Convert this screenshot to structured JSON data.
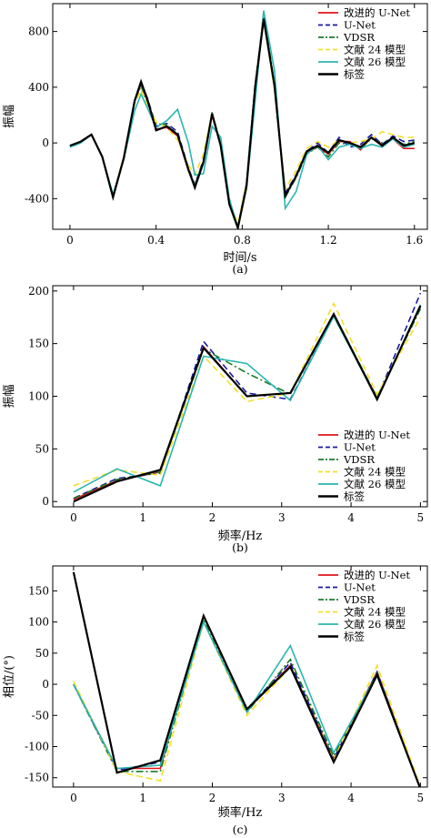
{
  "legend_labels": [
    "改进的 U-Net",
    "U-Net",
    "VDSR",
    "文献 24 模型",
    "文献 26 模型",
    "标签"
  ],
  "series_styles": [
    {
      "color": "#e0141c",
      "dash": "solid"
    },
    {
      "color": "#1a1aa0",
      "dash": "dashed"
    },
    {
      "color": "#1c7c2c",
      "dash": "dashdot"
    },
    {
      "color": "#f2e02a",
      "dash": "dashed"
    },
    {
      "color": "#2bb6b0",
      "dash": "solid"
    },
    {
      "color": "#000000",
      "dash": "solid"
    }
  ],
  "chart_data": [
    {
      "type": "line",
      "caption": "(a)",
      "xlabel": "时间/s",
      "ylabel": "振幅",
      "xlim": [
        -0.08,
        1.66
      ],
      "ylim": [
        -620,
        1000
      ],
      "xticks": [
        0,
        0.4,
        0.8,
        1.2,
        1.6
      ],
      "xtick_labels": [
        "0",
        "0.4",
        "0.8",
        "1.2",
        "1.6"
      ],
      "yticks": [
        -400,
        0,
        400,
        800
      ],
      "ytick_labels": [
        "-400",
        "0",
        "400",
        "800"
      ],
      "legend_position": "top-right",
      "series": [
        {
          "name": "改进的 U-Net",
          "x": [
            0,
            0.05,
            0.1,
            0.15,
            0.2,
            0.25,
            0.3,
            0.33,
            0.36,
            0.4,
            0.45,
            0.5,
            0.55,
            0.58,
            0.62,
            0.66,
            0.7,
            0.74,
            0.78,
            0.82,
            0.86,
            0.9,
            0.95,
            1.0,
            1.05,
            1.1,
            1.15,
            1.2,
            1.25,
            1.3,
            1.35,
            1.4,
            1.45,
            1.5,
            1.55,
            1.6
          ],
          "y": [
            -20,
            10,
            60,
            -100,
            -380,
            -100,
            300,
            420,
            300,
            100,
            110,
            50,
            -200,
            -310,
            -140,
            200,
            -20,
            -430,
            -610,
            -300,
            400,
            890,
            400,
            -380,
            -240,
            -70,
            -30,
            -80,
            10,
            10,
            -50,
            40,
            -10,
            30,
            -40,
            -40
          ]
        },
        {
          "name": "U-Net",
          "x": [
            0,
            0.05,
            0.1,
            0.15,
            0.2,
            0.25,
            0.3,
            0.33,
            0.36,
            0.4,
            0.45,
            0.5,
            0.55,
            0.58,
            0.62,
            0.66,
            0.7,
            0.74,
            0.78,
            0.82,
            0.86,
            0.9,
            0.95,
            1.0,
            1.05,
            1.1,
            1.15,
            1.2,
            1.25,
            1.3,
            1.35,
            1.4,
            1.45,
            1.5,
            1.55,
            1.6
          ],
          "y": [
            -20,
            10,
            60,
            -100,
            -390,
            -110,
            300,
            430,
            320,
            120,
            140,
            80,
            -180,
            -300,
            -120,
            210,
            -10,
            -420,
            -600,
            -290,
            420,
            900,
            400,
            -360,
            -230,
            -60,
            0,
            -70,
            40,
            -30,
            -10,
            60,
            -10,
            50,
            10,
            20
          ]
        },
        {
          "name": "VDSR",
          "x": [
            0,
            0.05,
            0.1,
            0.15,
            0.2,
            0.25,
            0.3,
            0.33,
            0.36,
            0.4,
            0.45,
            0.5,
            0.55,
            0.58,
            0.62,
            0.66,
            0.7,
            0.74,
            0.78,
            0.82,
            0.86,
            0.9,
            0.95,
            1.0,
            1.05,
            1.1,
            1.15,
            1.2,
            1.25,
            1.3,
            1.35,
            1.4,
            1.45,
            1.5,
            1.55,
            1.6
          ],
          "y": [
            -20,
            10,
            60,
            -100,
            -380,
            -110,
            300,
            410,
            280,
            140,
            130,
            60,
            -190,
            -300,
            -130,
            220,
            -10,
            -430,
            -600,
            -300,
            400,
            940,
            420,
            -390,
            -250,
            -80,
            -30,
            -100,
            0,
            -10,
            -40,
            30,
            0,
            30,
            -10,
            10
          ]
        },
        {
          "name": "文献 24 模型",
          "x": [
            0,
            0.05,
            0.1,
            0.15,
            0.2,
            0.25,
            0.3,
            0.33,
            0.36,
            0.4,
            0.45,
            0.5,
            0.55,
            0.58,
            0.62,
            0.66,
            0.7,
            0.74,
            0.78,
            0.82,
            0.86,
            0.9,
            0.95,
            1.0,
            1.05,
            1.1,
            1.15,
            1.2,
            1.25,
            1.3,
            1.35,
            1.4,
            1.45,
            1.5,
            1.55,
            1.6
          ],
          "y": [
            -20,
            10,
            60,
            -100,
            -380,
            -100,
            280,
            380,
            270,
            150,
            110,
            20,
            -160,
            -230,
            -80,
            210,
            -20,
            -420,
            -580,
            -280,
            380,
            880,
            380,
            -330,
            -200,
            -40,
            10,
            -30,
            20,
            0,
            10,
            30,
            80,
            60,
            40,
            40
          ]
        },
        {
          "name": "文献 26 模型",
          "x": [
            0,
            0.05,
            0.1,
            0.15,
            0.2,
            0.25,
            0.3,
            0.33,
            0.36,
            0.4,
            0.45,
            0.5,
            0.55,
            0.58,
            0.62,
            0.66,
            0.7,
            0.74,
            0.78,
            0.82,
            0.86,
            0.9,
            0.95,
            1.0,
            1.05,
            1.1,
            1.15,
            1.2,
            1.25,
            1.3,
            1.35,
            1.4,
            1.45,
            1.5,
            1.55,
            1.6
          ],
          "y": [
            -30,
            0,
            60,
            -100,
            -370,
            -120,
            230,
            350,
            250,
            110,
            160,
            240,
            0,
            -230,
            -220,
            120,
            40,
            -400,
            -610,
            -330,
            300,
            950,
            520,
            -470,
            -350,
            -80,
            -20,
            -120,
            -30,
            -10,
            -40,
            -10,
            -30,
            30,
            -30,
            -10
          ]
        },
        {
          "name": "标签",
          "x": [
            0,
            0.05,
            0.1,
            0.15,
            0.2,
            0.25,
            0.3,
            0.33,
            0.36,
            0.4,
            0.45,
            0.5,
            0.55,
            0.58,
            0.62,
            0.66,
            0.7,
            0.74,
            0.78,
            0.82,
            0.86,
            0.9,
            0.95,
            1.0,
            1.05,
            1.1,
            1.15,
            1.2,
            1.25,
            1.3,
            1.35,
            1.4,
            1.45,
            1.5,
            1.55,
            1.6
          ],
          "y": [
            -20,
            10,
            60,
            -100,
            -390,
            -110,
            300,
            440,
            310,
            90,
            120,
            60,
            -190,
            -320,
            -140,
            210,
            -20,
            -440,
            -610,
            -310,
            400,
            890,
            410,
            -380,
            -240,
            -60,
            -20,
            -70,
            20,
            0,
            -30,
            40,
            -20,
            40,
            -20,
            0
          ]
        }
      ]
    },
    {
      "type": "line",
      "caption": "(b)",
      "xlabel": "频率/Hz",
      "ylabel": "振幅",
      "xlim": [
        -0.3,
        5.1
      ],
      "ylim": [
        -5,
        205
      ],
      "xticks": [
        0,
        1,
        2,
        3,
        4,
        5
      ],
      "xtick_labels": [
        "0",
        "1",
        "2",
        "3",
        "4",
        "5"
      ],
      "yticks": [
        0,
        50,
        100,
        150,
        200
      ],
      "ytick_labels": [
        "0",
        "50",
        "100",
        "150",
        "200"
      ],
      "legend_position": "bottom-right",
      "series": [
        {
          "name": "改进的 U-Net",
          "x": [
            0,
            0.625,
            1.25,
            1.875,
            2.5,
            3.125,
            3.75,
            4.375,
            5
          ],
          "y": [
            2,
            20,
            28,
            147,
            100,
            103,
            178,
            98,
            185
          ]
        },
        {
          "name": "U-Net",
          "x": [
            0,
            0.625,
            1.25,
            1.875,
            2.5,
            3.125,
            3.75,
            4.375,
            5
          ],
          "y": [
            3,
            22,
            27,
            152,
            103,
            97,
            176,
            98,
            198
          ]
        },
        {
          "name": "VDSR",
          "x": [
            0,
            0.625,
            1.25,
            1.875,
            2.5,
            3.125,
            3.75,
            4.375,
            5
          ],
          "y": [
            3,
            21,
            28,
            145,
            122,
            102,
            178,
            99,
            183
          ]
        },
        {
          "name": "文献 24 模型",
          "x": [
            0,
            0.625,
            1.25,
            1.875,
            2.5,
            3.125,
            3.75,
            4.375,
            5
          ],
          "y": [
            15,
            30,
            25,
            138,
            95,
            103,
            188,
            102,
            175
          ]
        },
        {
          "name": "文献 26 模型",
          "x": [
            0,
            0.625,
            1.25,
            1.875,
            2.5,
            3.125,
            3.75,
            4.375,
            5
          ],
          "y": [
            9,
            31,
            15,
            138,
            131,
            96,
            176,
            97,
            187
          ]
        },
        {
          "name": "标签",
          "x": [
            0,
            0.625,
            1.25,
            1.875,
            2.5,
            3.125,
            3.75,
            4.375,
            5
          ],
          "y": [
            0,
            19,
            30,
            146,
            100,
            103,
            178,
            97,
            186
          ]
        }
      ]
    },
    {
      "type": "line",
      "caption": "(c)",
      "xlabel": "频率/Hz",
      "ylabel": "相位/(°)",
      "xlim": [
        -0.3,
        5.1
      ],
      "ylim": [
        -165,
        190
      ],
      "xticks": [
        0,
        1,
        2,
        3,
        4,
        5
      ],
      "xtick_labels": [
        "0",
        "1",
        "2",
        "3",
        "4",
        "5"
      ],
      "yticks": [
        -150,
        -100,
        -50,
        0,
        50,
        100,
        150
      ],
      "ytick_labels": [
        "-150",
        "-100",
        "-50",
        "0",
        "50",
        "100",
        "150"
      ],
      "legend_position": "top-right",
      "series": [
        {
          "name": "改进的 U-Net",
          "x": [
            0,
            0.625,
            1.25,
            1.875,
            2.5,
            3.125,
            3.75,
            4.375,
            5
          ],
          "y": [
            0,
            -135,
            -135,
            110,
            -40,
            30,
            -120,
            20,
            -168
          ]
        },
        {
          "name": "U-Net",
          "x": [
            0,
            0.625,
            1.25,
            1.875,
            2.5,
            3.125,
            3.75,
            4.375,
            5
          ],
          "y": [
            0,
            -138,
            -125,
            110,
            -40,
            35,
            -120,
            20,
            -168
          ]
        },
        {
          "name": "VDSR",
          "x": [
            0,
            0.625,
            1.25,
            1.875,
            2.5,
            3.125,
            3.75,
            4.375,
            5
          ],
          "y": [
            0,
            -140,
            -140,
            105,
            -45,
            40,
            -115,
            18,
            -168
          ]
        },
        {
          "name": "文献 24 模型",
          "x": [
            0,
            0.625,
            1.25,
            1.875,
            2.5,
            3.125,
            3.75,
            4.375,
            5
          ],
          "y": [
            5,
            -140,
            -155,
            100,
            -50,
            28,
            -122,
            30,
            -165
          ]
        },
        {
          "name": "文献 26 模型",
          "x": [
            0,
            0.625,
            1.25,
            1.875,
            2.5,
            3.125,
            3.75,
            4.375,
            5
          ],
          "y": [
            0,
            -135,
            -130,
            100,
            -45,
            62,
            -110,
            15,
            -168
          ]
        },
        {
          "name": "标签",
          "x": [
            0,
            0.625,
            1.25,
            1.875,
            2.5,
            3.125,
            3.75,
            4.375,
            5
          ],
          "y": [
            180,
            -142,
            -122,
            110,
            -40,
            28,
            -125,
            15,
            -168
          ]
        }
      ]
    }
  ]
}
